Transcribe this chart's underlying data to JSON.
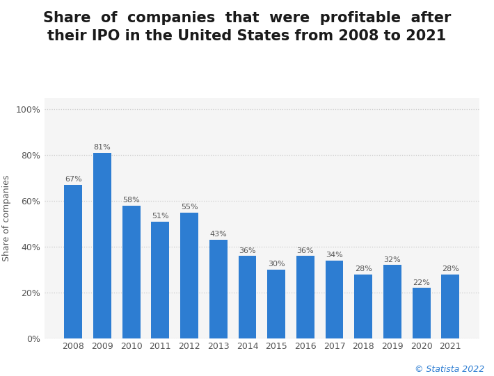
{
  "title_line1": "Share  of  companies  that  were  profitable  after",
  "title_line2": "their IPO in the United States from 2008 to 2021",
  "years": [
    2008,
    2009,
    2010,
    2011,
    2012,
    2013,
    2014,
    2015,
    2016,
    2017,
    2018,
    2019,
    2020,
    2021
  ],
  "values": [
    67,
    81,
    58,
    51,
    55,
    43,
    36,
    30,
    36,
    34,
    28,
    32,
    22,
    28
  ],
  "bar_color": "#2D7DD2",
  "ylabel": "Share of companies",
  "yticks": [
    0,
    20,
    40,
    60,
    80,
    100
  ],
  "ylim": [
    0,
    105
  ],
  "background_color": "#ffffff",
  "plot_bg_color": "#f5f5f5",
  "grid_color": "#cccccc",
  "title_color": "#1a1a1a",
  "label_color": "#555555",
  "watermark": "© Statista 2022",
  "watermark_color": "#2D7DD2"
}
